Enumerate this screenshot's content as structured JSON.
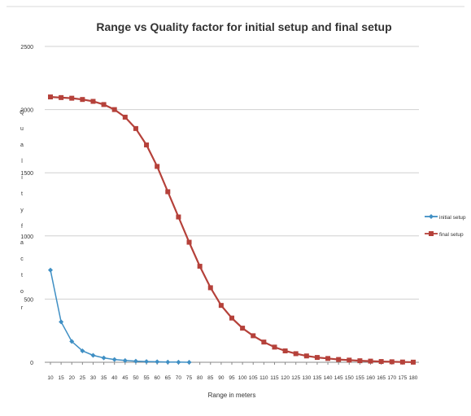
{
  "chart_data": {
    "type": "line",
    "title": "Range vs Quality factor for initial setup and final setup",
    "xlabel": "Range in meters",
    "ylabel": "Quality factor",
    "ylim": [
      0,
      2500
    ],
    "yticks": [
      "0",
      "500",
      "1000",
      "1500",
      "2000",
      "2500"
    ],
    "categories": [
      "10",
      "15",
      "20",
      "25",
      "30",
      "35",
      "40",
      "45",
      "50",
      "55",
      "60",
      "65",
      "70",
      "75",
      "80",
      "85",
      "90",
      "95",
      "100",
      "105",
      "110",
      "115",
      "120",
      "125",
      "130",
      "135",
      "140",
      "145",
      "150",
      "155",
      "160",
      "165",
      "170",
      "175",
      "180"
    ],
    "grid": "horizontal",
    "legend": "right",
    "series": [
      {
        "name": "initial setup",
        "color": "#3f8fc4",
        "values": [
          730,
          320,
          165,
          90,
          55,
          35,
          22,
          14,
          9,
          6,
          4,
          2,
          1,
          0,
          null,
          null,
          null,
          null,
          null,
          null,
          null,
          null,
          null,
          null,
          null,
          null,
          null,
          null,
          null,
          null,
          null,
          null,
          null,
          null,
          null
        ]
      },
      {
        "name": "final setup",
        "color": "#b5413a",
        "values": [
          2100,
          2095,
          2090,
          2080,
          2065,
          2040,
          2000,
          1940,
          1850,
          1720,
          1550,
          1350,
          1150,
          950,
          760,
          590,
          450,
          350,
          270,
          210,
          160,
          120,
          90,
          68,
          50,
          38,
          30,
          22,
          17,
          12,
          9,
          6,
          4,
          2,
          1
        ]
      }
    ]
  }
}
